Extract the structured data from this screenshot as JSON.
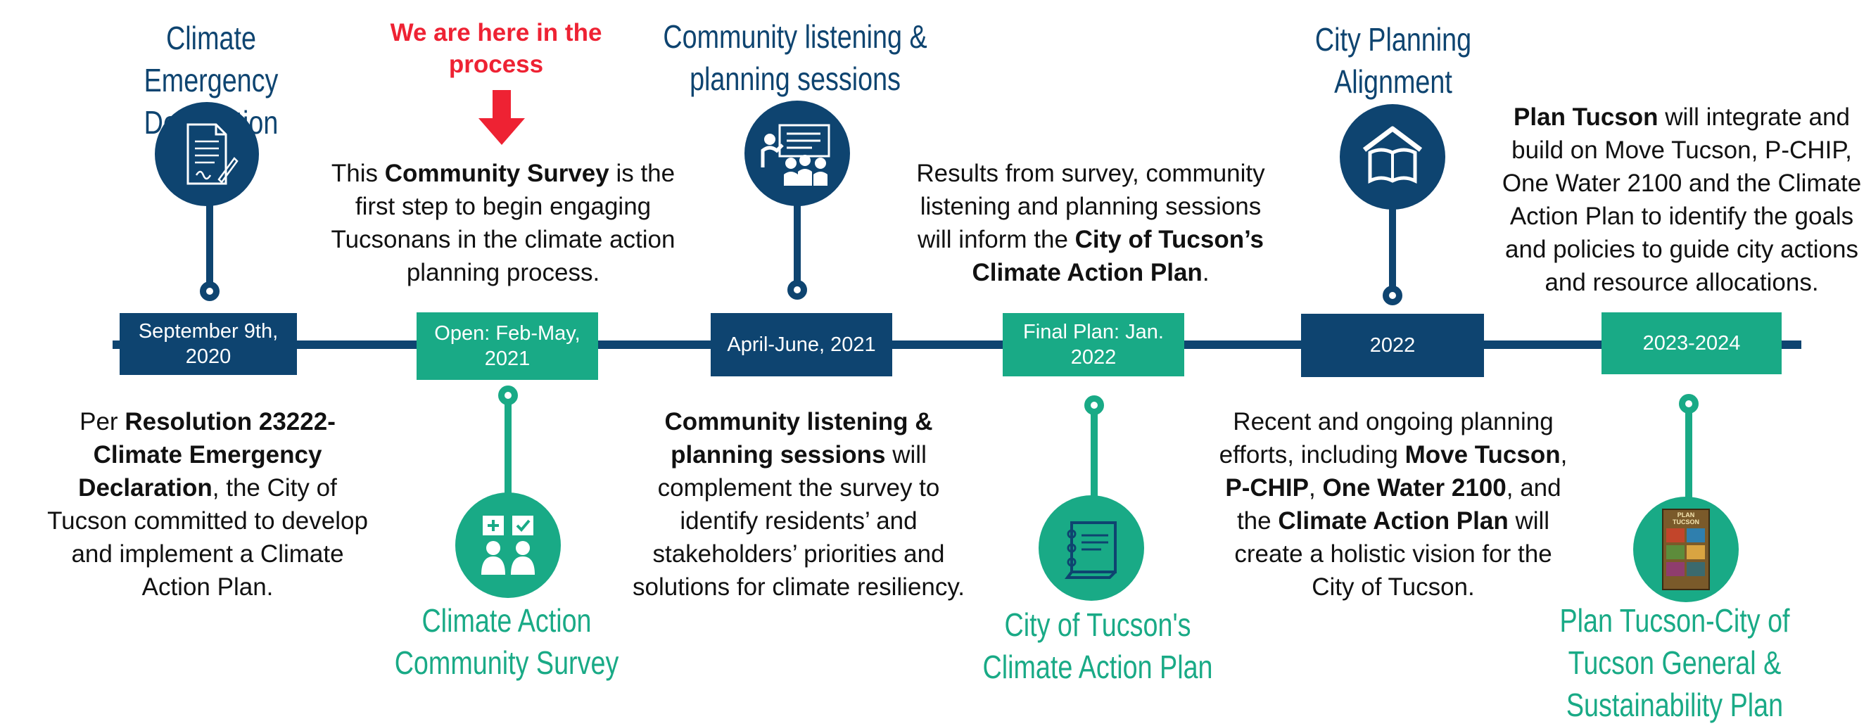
{
  "colors": {
    "navy": "#0e4470",
    "green": "#19aa86",
    "red": "#ee2233"
  },
  "milestones": [
    {
      "date": "September 9th, 2020",
      "title": "Climate Emergency Declaration",
      "icon": "document-signature-icon",
      "text": [
        "Per ",
        "Resolution 23222-Climate Emergency Declaration",
        ", the City of Tucson committed to develop and implement a Climate Action Plan."
      ]
    },
    {
      "date": "Open: Feb-May, 2021",
      "title": "Climate Action Community Survey",
      "icon": "survey-people-icon",
      "note": "We are here in the process",
      "text": [
        "This ",
        "Community Survey",
        " is the first step to begin engaging Tucsonans in the climate action planning process."
      ]
    },
    {
      "date": "April-June, 2021",
      "title": "Community listening & planning sessions",
      "icon": "presentation-audience-icon",
      "text": [
        "Community listening & planning sessions",
        " will complement the survey to identify residents’ and stakeholders’ priorities and solutions for climate resiliency."
      ]
    },
    {
      "date": "Final Plan: Jan. 2022",
      "title": "City of Tucson's Climate Action Plan",
      "icon": "notebook-icon",
      "text": [
        "Results from survey, community listening and planning sessions will inform the ",
        "City of Tucson’s Climate Action Plan",
        "."
      ]
    },
    {
      "date": "2022",
      "title": "City Planning Alignment",
      "icon": "open-book-house-icon",
      "text": [
        "Recent and ongoing planning efforts, including ",
        "Move Tucson",
        ", ",
        "P-CHIP",
        ", ",
        "One Water 2100",
        ", and the ",
        "Climate Action Plan",
        " will create a holistic vision for the City of Tucson."
      ]
    },
    {
      "date": "2023-2024",
      "title": "Plan Tucson-City of Tucson General & Sustainability Plan",
      "icon": "plan-tucson-cover-icon",
      "cover_text": "PLAN TUCSON",
      "text": [
        "Plan Tucson",
        " will integrate and build on Move Tucson, P-CHIP, One Water 2100 and the Climate Action Plan to identify the goals and policies to guide city actions and resource allocations."
      ]
    }
  ]
}
